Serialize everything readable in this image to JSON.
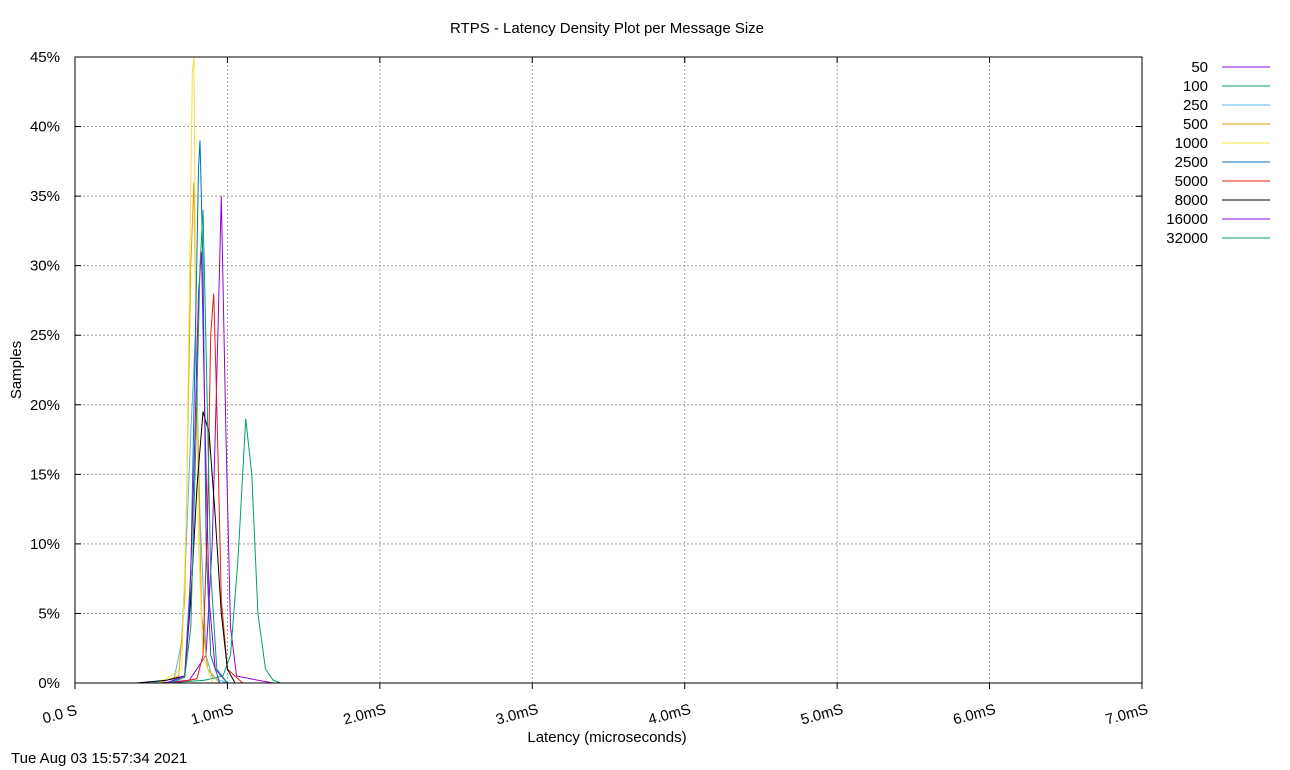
{
  "chart_data": {
    "type": "line",
    "title": "RTPS - Latency Density Plot per Message Size",
    "xlabel": "Latency (microseconds)",
    "ylabel": "Samples",
    "xlim": [
      0,
      7
    ],
    "ylim": [
      0,
      45
    ],
    "x_tick_labels": [
      "0.0 S",
      "1.0mS",
      "2.0mS",
      "3.0mS",
      "4.0mS",
      "5.0mS",
      "6.0mS",
      "7.0mS"
    ],
    "y_tick_labels": [
      "0%",
      "5%",
      "10%",
      "15%",
      "20%",
      "25%",
      "30%",
      "35%",
      "40%",
      "45%"
    ],
    "grid": true,
    "legend_position": "outside-right-top",
    "series": [
      {
        "name": "50",
        "color": "#9400d3",
        "x": [
          0.55,
          0.75,
          0.86,
          0.9,
          0.93,
          0.96,
          0.99,
          1.02,
          1.06,
          1.15,
          1.3
        ],
        "y": [
          0,
          0.2,
          2,
          10,
          22,
          35,
          18,
          4,
          0.5,
          0.3,
          0
        ]
      },
      {
        "name": "100",
        "color": "#009e73",
        "x": [
          0.6,
          0.85,
          0.97,
          1.02,
          1.07,
          1.12,
          1.16,
          1.2,
          1.25,
          1.3,
          1.35
        ],
        "y": [
          0,
          0.2,
          0.5,
          2,
          9,
          19,
          15,
          5,
          1,
          0.2,
          0
        ]
      },
      {
        "name": "250",
        "color": "#56b4e9",
        "x": [
          0.5,
          0.65,
          0.7,
          0.73,
          0.76,
          0.79,
          0.82,
          0.86,
          0.9,
          1.0
        ],
        "y": [
          0,
          0.3,
          3,
          10,
          18,
          25,
          12,
          2,
          0.4,
          0
        ]
      },
      {
        "name": "500",
        "color": "#e69f00",
        "x": [
          0.55,
          0.68,
          0.72,
          0.74,
          0.76,
          0.78,
          0.8,
          0.83,
          0.87,
          0.95
        ],
        "y": [
          0,
          0.5,
          6,
          18,
          30,
          36,
          22,
          5,
          1,
          0
        ]
      },
      {
        "name": "1000",
        "color": "#f0e442",
        "x": [
          0.55,
          0.7,
          0.73,
          0.75,
          0.77,
          0.78,
          0.79,
          0.81,
          0.84,
          0.9
        ],
        "y": [
          0,
          1,
          12,
          28,
          44,
          45,
          30,
          10,
          2,
          0
        ]
      },
      {
        "name": "2500",
        "color": "#0072b2",
        "x": [
          0.6,
          0.72,
          0.76,
          0.79,
          0.81,
          0.82,
          0.84,
          0.86,
          0.89,
          0.95
        ],
        "y": [
          0,
          0.5,
          8,
          25,
          37,
          39,
          30,
          10,
          2,
          0
        ]
      },
      {
        "name": "5000",
        "color": "#e51e10",
        "x": [
          0.65,
          0.8,
          0.84,
          0.87,
          0.89,
          0.91,
          0.93,
          0.96,
          1.0,
          1.1
        ],
        "y": [
          0,
          0.3,
          2,
          12,
          25,
          28,
          20,
          6,
          1,
          0
        ]
      },
      {
        "name": "8000",
        "color": "#000000",
        "x": [
          0.4,
          0.6,
          0.72,
          0.76,
          0.8,
          0.84,
          0.88,
          0.92,
          0.96,
          1.0,
          1.05
        ],
        "y": [
          0,
          0.2,
          0.5,
          6,
          14,
          19.5,
          18,
          12,
          5,
          1,
          0
        ]
      },
      {
        "name": "16000",
        "color": "#9400d3",
        "x": [
          0.6,
          0.72,
          0.75,
          0.78,
          0.81,
          0.83,
          0.85,
          0.88,
          0.92,
          1.0
        ],
        "y": [
          0,
          0.5,
          5,
          15,
          28,
          31,
          20,
          6,
          1,
          0
        ]
      },
      {
        "name": "32000",
        "color": "#009e73",
        "x": [
          0.62,
          0.72,
          0.76,
          0.79,
          0.82,
          0.84,
          0.86,
          0.89,
          0.93,
          1.0
        ],
        "y": [
          0,
          0.4,
          4,
          16,
          30,
          34,
          24,
          8,
          1,
          0
        ]
      }
    ]
  },
  "footer": {
    "timestamp": "Tue Aug 03 15:57:34 2021"
  }
}
